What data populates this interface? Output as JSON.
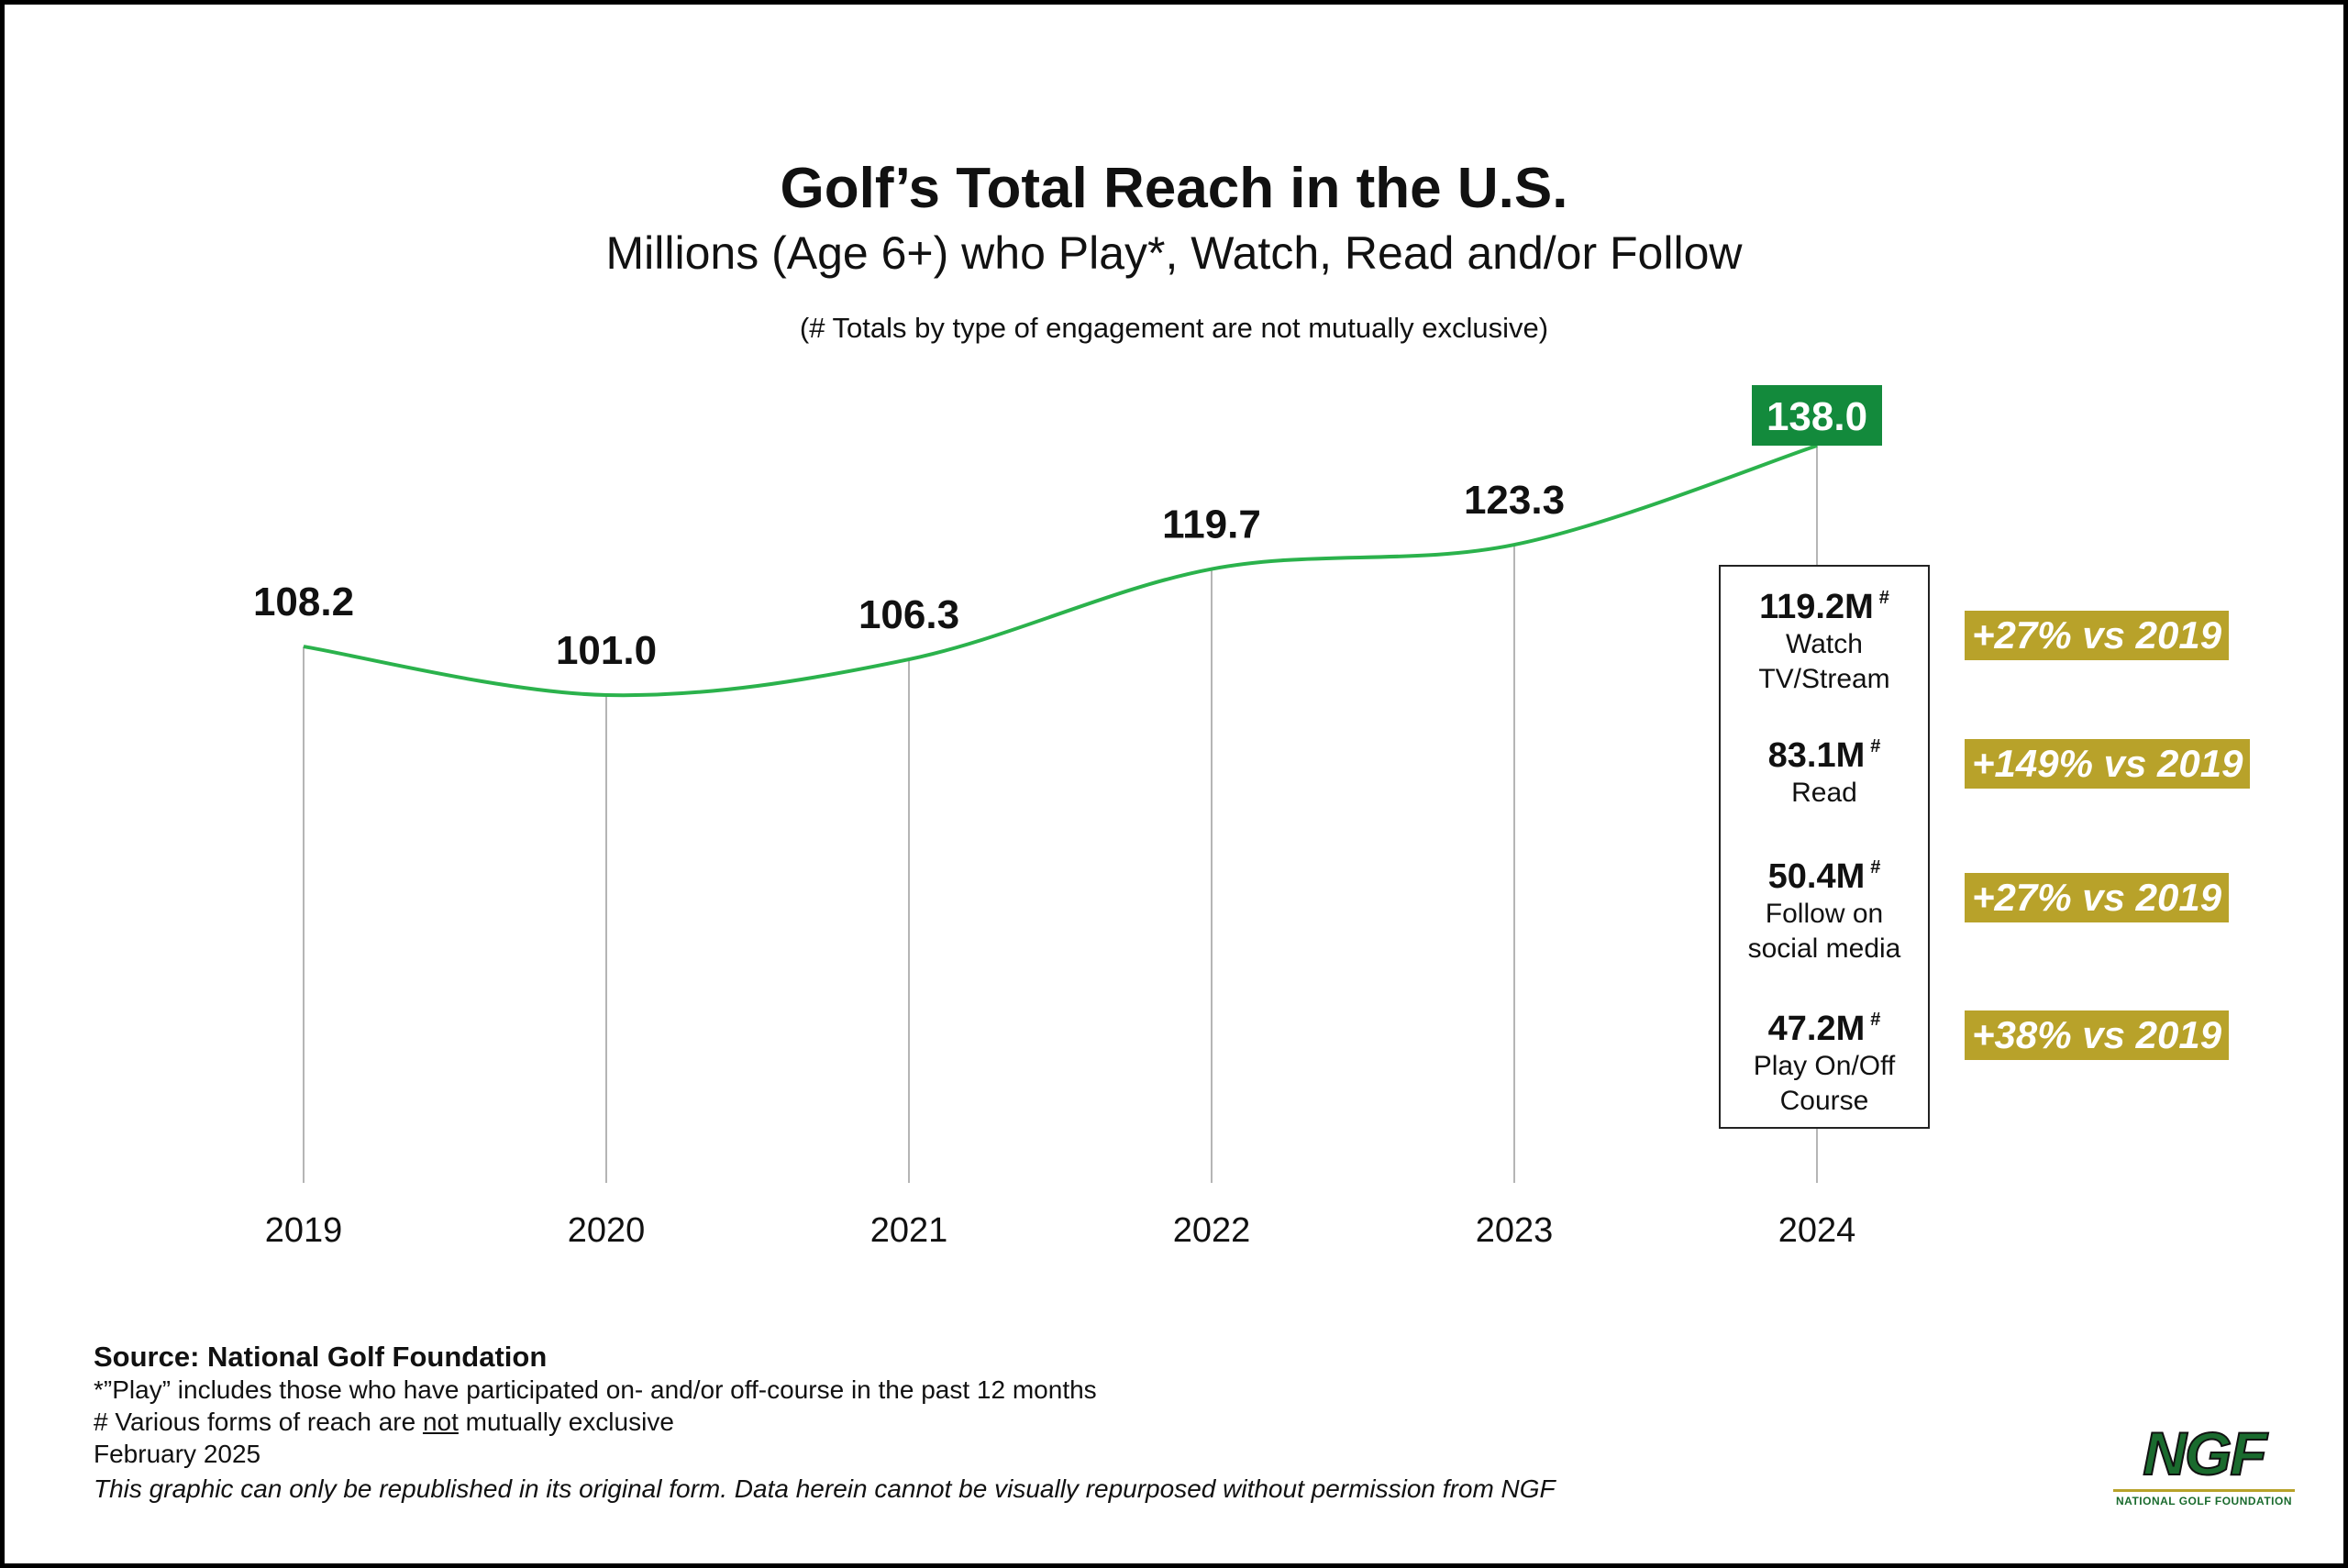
{
  "header": {
    "title": "Golf’s Total Reach in the U.S.",
    "subtitle": "Millions (Age 6+) who Play*, Watch, Read and/or Follow",
    "note": "(# Totals by type of engagement are not mutually exclusive)"
  },
  "chart_data": {
    "type": "line",
    "title": "Golf’s Total Reach in the U.S.",
    "subtitle": "Millions (Age 6+) who Play*, Watch, Read and/or Follow",
    "categories": [
      "2019",
      "2020",
      "2021",
      "2022",
      "2023",
      "2024"
    ],
    "values": [
      108.2,
      101.0,
      106.3,
      119.7,
      123.3,
      138.0
    ],
    "value_labels": [
      "108.2",
      "101.0",
      "106.3",
      "119.7",
      "123.3",
      "138.0"
    ],
    "highlight_index": 5,
    "line_color": "#2bb24c",
    "highlight_color": "#138a3c",
    "grid": false
  },
  "breakdown": {
    "items": [
      {
        "value": "119.2M",
        "marker": "#",
        "label1": "Watch",
        "label2": "TV/Stream",
        "change": "+27% vs 2019"
      },
      {
        "value": "83.1M",
        "marker": "#",
        "label1": "Read",
        "label2": "",
        "change": "+149% vs 2019"
      },
      {
        "value": "50.4M",
        "marker": "#",
        "label1": "Follow on",
        "label2": "social media",
        "change": "+27% vs 2019"
      },
      {
        "value": "47.2M",
        "marker": "#",
        "label1": "Play On/Off",
        "label2": "Course",
        "change": "+38% vs 2019"
      }
    ],
    "badge_color": "#b8a22a"
  },
  "footer": {
    "source": "Source: National Golf Foundation",
    "play_note": "*”Play” includes those who have participated on- and/or off-course in the past 12 months",
    "hash_note_before": "# Various forms of reach are ",
    "hash_note_emph": "not",
    "hash_note_after": " mutually exclusive",
    "date": "February 2025",
    "republish": "This graphic can only be republished in its original form. Data herein cannot be visually repurposed without permission from NGF"
  },
  "logo": {
    "text": "NGF",
    "subtext": "NATIONAL GOLF FOUNDATION"
  }
}
